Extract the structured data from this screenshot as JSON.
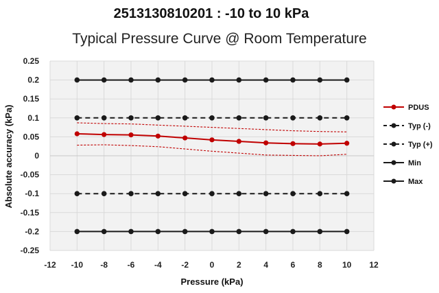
{
  "chart_data": {
    "type": "line",
    "title": "2513130810201 : -10 to 10 kPa",
    "subtitle": "Typical Pressure Curve @ Room Temperature",
    "xlabel": "Pressure (kPa)",
    "ylabel": "Absolute accuracy (kPa)",
    "xlim": [
      -12,
      12
    ],
    "ylim": [
      -0.25,
      0.25
    ],
    "x_ticks": [
      "-12",
      "-10",
      "-8",
      "-6",
      "-4",
      "-2",
      "0",
      "2",
      "4",
      "6",
      "8",
      "10",
      "12"
    ],
    "y_ticks": [
      "0.25",
      "0.2",
      "0.15",
      "0.1",
      "0.05",
      "0",
      "-0.05",
      "-0.1",
      "-0.15",
      "-0.2",
      "-0.25"
    ],
    "grid": true,
    "legend_position": "right",
    "x": [
      -10,
      -8,
      -6,
      -4,
      -2,
      0,
      2,
      4,
      6,
      8,
      10
    ],
    "series": [
      {
        "name": "PDUS",
        "color": "#c00000",
        "style": "solid",
        "values": [
          0.058,
          0.056,
          0.055,
          0.052,
          0.047,
          0.042,
          0.038,
          0.034,
          0.032,
          0.031,
          0.033
        ]
      },
      {
        "name": "Typ (-)",
        "color": "#1a1a1a",
        "style": "dashed",
        "values": [
          0.1,
          0.1,
          0.1,
          0.1,
          0.1,
          0.1,
          0.1,
          0.1,
          0.1,
          0.1,
          0.1
        ]
      },
      {
        "name": "Typ (+)",
        "color": "#1a1a1a",
        "style": "dashed",
        "values": [
          -0.1,
          -0.1,
          -0.1,
          -0.1,
          -0.1,
          -0.1,
          -0.1,
          -0.1,
          -0.1,
          -0.1,
          -0.1
        ]
      },
      {
        "name": "Min",
        "color": "#1a1a1a",
        "style": "solid",
        "values": [
          -0.2,
          -0.2,
          -0.2,
          -0.2,
          -0.2,
          -0.2,
          -0.2,
          -0.2,
          -0.2,
          -0.2,
          -0.2
        ]
      },
      {
        "name": "Max",
        "color": "#1a1a1a",
        "style": "solid",
        "values": [
          0.2,
          0.2,
          0.2,
          0.2,
          0.2,
          0.2,
          0.2,
          0.2,
          0.2,
          0.2,
          0.2
        ]
      }
    ],
    "bands": [
      {
        "color": "#c00000",
        "style": "dotted",
        "upper": [
          0.087,
          0.085,
          0.084,
          0.081,
          0.078,
          0.075,
          0.072,
          0.069,
          0.066,
          0.064,
          0.063
        ],
        "lower": [
          0.028,
          0.029,
          0.027,
          0.024,
          0.018,
          0.012,
          0.007,
          0.002,
          0.001,
          0.0,
          0.004
        ]
      }
    ]
  }
}
